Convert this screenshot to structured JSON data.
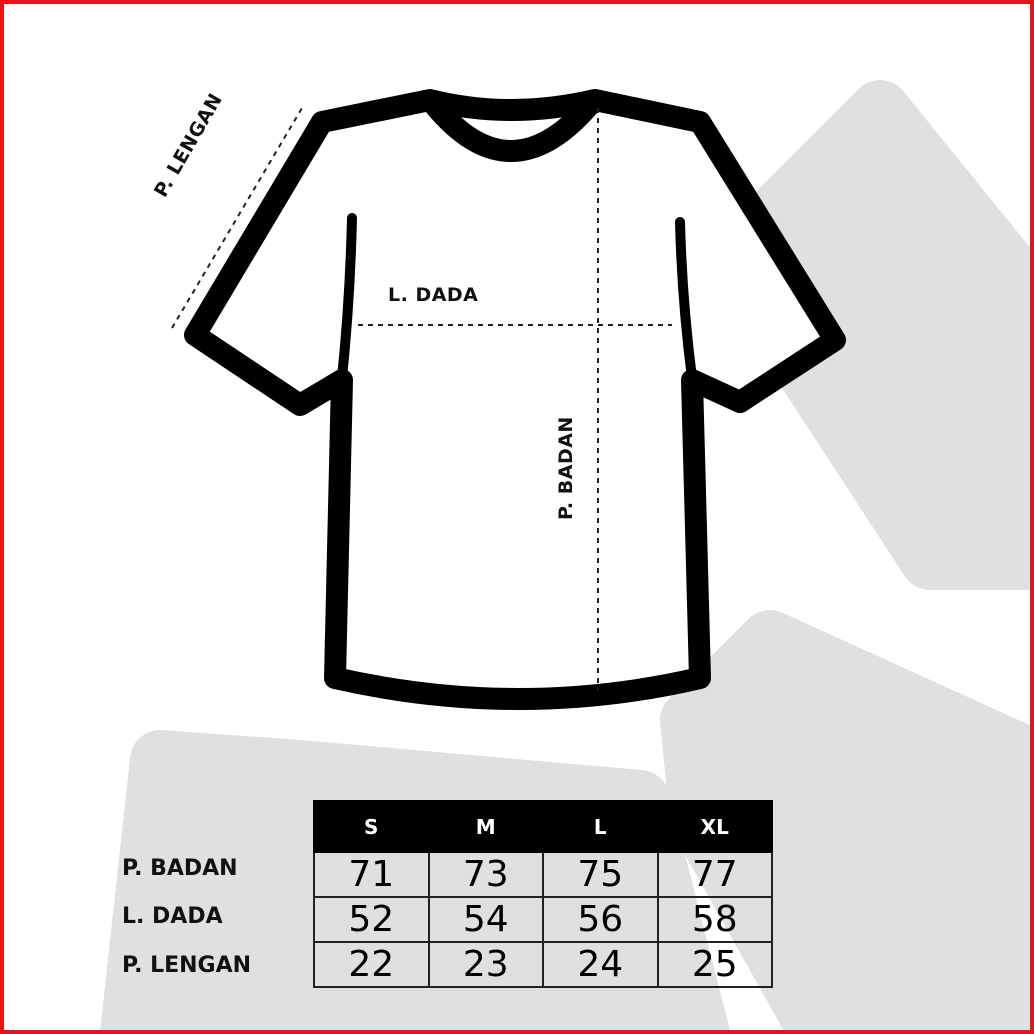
{
  "diagram_labels": {
    "sleeve_length": "P. LENGAN",
    "chest_width": "L. DADA",
    "body_length": "P. BADAN"
  },
  "table": {
    "sizes": [
      "S",
      "M",
      "L",
      "XL"
    ],
    "rows": [
      {
        "label": "P. BADAN",
        "values": [
          "71",
          "73",
          "75",
          "77"
        ]
      },
      {
        "label": "L. DADA",
        "values": [
          "52",
          "54",
          "56",
          "58"
        ]
      },
      {
        "label": "P. LENGAN",
        "values": [
          "22",
          "23",
          "24",
          "25"
        ]
      }
    ]
  },
  "colors": {
    "border": "#e8141c",
    "background_shape": "#e0e0e0",
    "outline": "#000000"
  }
}
